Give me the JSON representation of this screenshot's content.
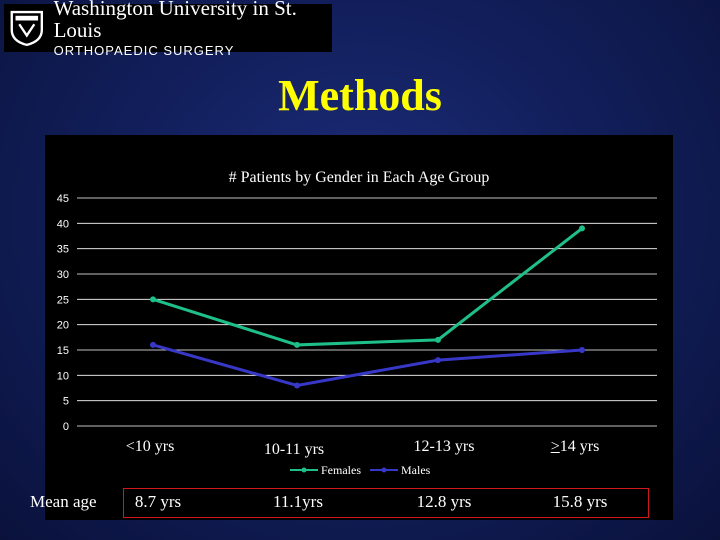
{
  "header": {
    "university": "Washington University in St. Louis",
    "department": "ORTHOPAEDIC SURGERY"
  },
  "slide_title": "Methods",
  "chart_data": {
    "type": "line",
    "title": "# Patients by Gender in Each Age Group",
    "categories": [
      "<10 yrs",
      "10-11 yrs",
      "12-13 yrs",
      ">14 yrs"
    ],
    "series": [
      {
        "name": "Females",
        "values": [
          25,
          16,
          17,
          39
        ],
        "color": "#1fbf8a"
      },
      {
        "name": "Males",
        "values": [
          16,
          8,
          13,
          15
        ],
        "color": "#3838c8"
      }
    ],
    "ylim": [
      0,
      45
    ],
    "yticks": [
      0,
      5,
      10,
      15,
      20,
      25,
      30,
      35,
      40,
      45
    ],
    "grid": true,
    "legend": "bottom"
  },
  "mean_age": {
    "label": "Mean age",
    "values": [
      "8.7 yrs",
      "11.1yrs",
      "12.8 yrs",
      "15.8 yrs"
    ]
  },
  "colors": {
    "title": "#ffff00",
    "background": "#121f5c",
    "chart_background": "#000000",
    "mean_box_border": "#d01818"
  }
}
